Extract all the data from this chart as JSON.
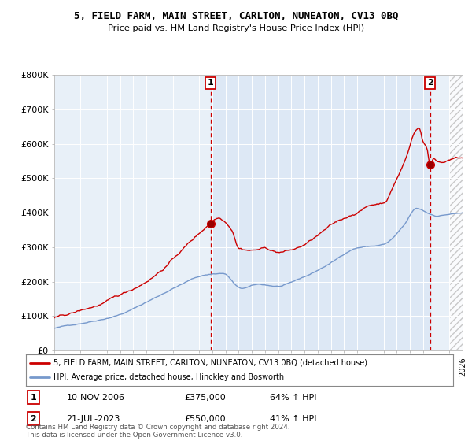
{
  "title1": "5, FIELD FARM, MAIN STREET, CARLTON, NUNEATON, CV13 0BQ",
  "title2": "Price paid vs. HM Land Registry's House Price Index (HPI)",
  "xlim_start": 1995.0,
  "xlim_end": 2026.0,
  "ylim_min": 0,
  "ylim_max": 800000,
  "yticks": [
    0,
    100000,
    200000,
    300000,
    400000,
    500000,
    600000,
    700000,
    800000
  ],
  "ytick_labels": [
    "£0",
    "£100K",
    "£200K",
    "£300K",
    "£400K",
    "£500K",
    "£600K",
    "£700K",
    "£800K"
  ],
  "sale1_x": 2006.87,
  "sale1_y": 375000,
  "sale1_label": "1",
  "sale2_x": 2023.54,
  "sale2_y": 550000,
  "sale2_label": "2",
  "legend_red": "5, FIELD FARM, MAIN STREET, CARLTON, NUNEATON, CV13 0BQ (detached house)",
  "legend_blue": "HPI: Average price, detached house, Hinckley and Bosworth",
  "footer": "Contains HM Land Registry data © Crown copyright and database right 2024.\nThis data is licensed under the Open Government Licence v3.0.",
  "table_row1": [
    "1",
    "10-NOV-2006",
    "£375,000",
    "64% ↑ HPI"
  ],
  "table_row2": [
    "2",
    "21-JUL-2023",
    "£550,000",
    "41% ↑ HPI"
  ],
  "red_color": "#cc0000",
  "blue_color": "#7799cc",
  "fill_color": "#dde8f5",
  "bg_color": "#ffffff",
  "grid_color": "#ccddee",
  "hatch_color": "#aaaaaa"
}
